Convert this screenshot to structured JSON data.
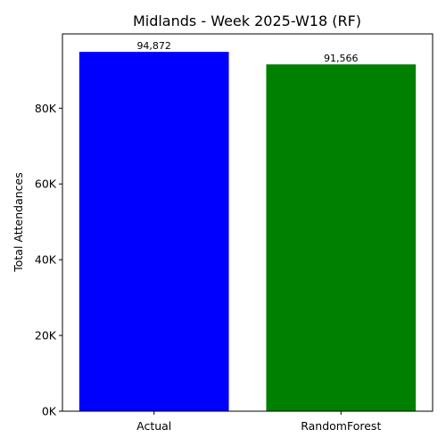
{
  "chart_data": {
    "type": "bar",
    "title": "Midlands - Week 2025-W18 (RF)",
    "xlabel": "",
    "ylabel": "Total Attendances",
    "categories": [
      "Actual",
      "RandomForest"
    ],
    "values": [
      94872,
      91566
    ],
    "data_labels": [
      "94,872",
      "91,566"
    ],
    "colors": [
      "#0000ff",
      "#008000"
    ],
    "ylim": [
      0,
      99615
    ],
    "yticks": [
      0,
      20000,
      40000,
      60000,
      80000
    ],
    "ytick_labels": [
      "0K",
      "20K",
      "40K",
      "60K",
      "80K"
    ],
    "grid": false,
    "legend": "none"
  }
}
